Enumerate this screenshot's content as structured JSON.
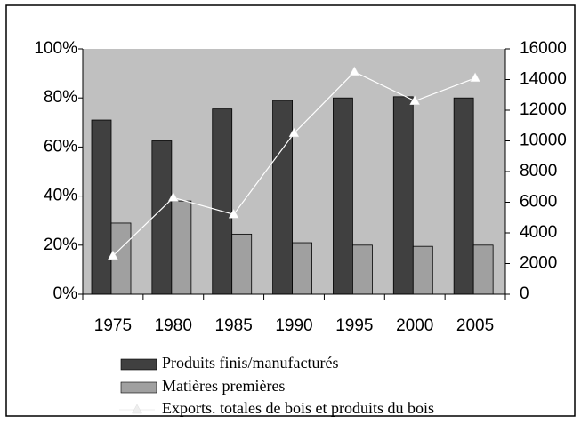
{
  "chart_data": {
    "type": "bar",
    "categories": [
      "1975",
      "1980",
      "1985",
      "1990",
      "1995",
      "2000",
      "2005"
    ],
    "series": [
      {
        "name": "Produits finis/manufacturés",
        "color": "#404040",
        "values": [
          71,
          62.5,
          75.5,
          79,
          80,
          80.5,
          80
        ]
      },
      {
        "name": "Matières premières",
        "color": "#a0a0a0",
        "values": [
          29,
          38,
          24.5,
          21,
          20,
          19.5,
          20
        ]
      },
      {
        "name": "Exports. totales de bois et produits du bois",
        "color": "#ffffff",
        "type": "line",
        "axis": "y2",
        "values": [
          2500,
          6300,
          5200,
          10500,
          14500,
          12600,
          14100
        ]
      }
    ],
    "ylim": [
      0,
      100
    ],
    "yticks": [
      {
        "value": 0,
        "label": "0%"
      },
      {
        "value": 20,
        "label": "20%"
      },
      {
        "value": 40,
        "label": "40%"
      },
      {
        "value": 60,
        "label": "60%"
      },
      {
        "value": 80,
        "label": "80%"
      },
      {
        "value": 100,
        "label": "100%"
      }
    ],
    "y2lim": [
      0,
      16000
    ],
    "y2ticks": [
      0,
      2000,
      4000,
      6000,
      8000,
      10000,
      12000,
      14000,
      16000
    ],
    "plot_background": "#c0c0c0"
  }
}
